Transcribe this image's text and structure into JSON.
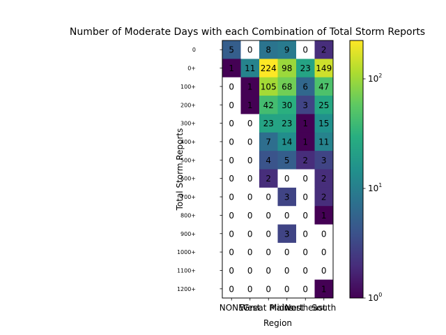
{
  "chart_data": {
    "type": "heatmap",
    "title": "Number of Moderate Days with each Combination of Total Storm Reports",
    "xlabel": "Region",
    "ylabel": "Total Storm Reports",
    "x_categories": [
      "NONE",
      "West",
      "Great Plains",
      "Midwest",
      "Northeast",
      "South"
    ],
    "y_categories": [
      "0",
      "0+",
      "100+",
      "200+",
      "300+",
      "400+",
      "500+",
      "600+",
      "700+",
      "800+",
      "900+",
      "1000+",
      "1100+",
      "1200+"
    ],
    "values": [
      [
        5,
        0,
        8,
        9,
        0,
        2
      ],
      [
        1,
        11,
        224,
        98,
        23,
        149
      ],
      [
        0,
        1,
        105,
        68,
        6,
        47
      ],
      [
        0,
        1,
        42,
        30,
        3,
        25
      ],
      [
        0,
        0,
        23,
        23,
        1,
        15
      ],
      [
        0,
        0,
        7,
        14,
        1,
        11
      ],
      [
        0,
        0,
        4,
        5,
        2,
        3
      ],
      [
        0,
        0,
        2,
        0,
        0,
        2
      ],
      [
        0,
        0,
        0,
        3,
        0,
        2
      ],
      [
        0,
        0,
        0,
        0,
        0,
        1
      ],
      [
        0,
        0,
        0,
        3,
        0,
        0
      ],
      [
        0,
        0,
        0,
        0,
        0,
        0
      ],
      [
        0,
        0,
        0,
        0,
        0,
        0
      ],
      [
        0,
        0,
        0,
        0,
        0,
        1
      ]
    ],
    "color_scale": "log",
    "colormap": "viridis",
    "zero_color": "#ffffff",
    "colorbar": {
      "range": [
        1,
        224
      ],
      "ticks": [
        {
          "value": 1,
          "base": "10",
          "exp": "0"
        },
        {
          "value": 10,
          "base": "10",
          "exp": "1"
        },
        {
          "value": 100,
          "base": "10",
          "exp": "2"
        }
      ]
    }
  }
}
